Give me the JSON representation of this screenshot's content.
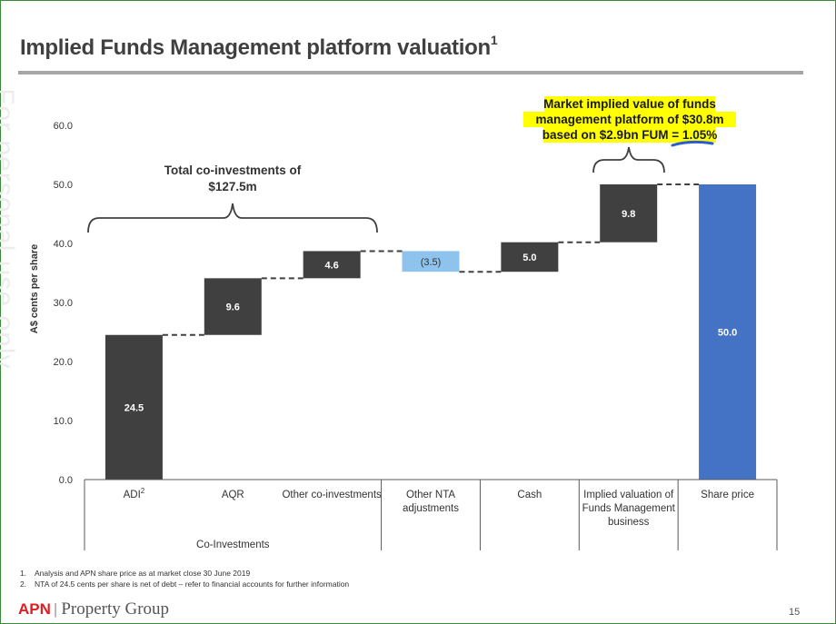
{
  "title": "Implied Funds Management platform valuation",
  "title_sup": "1",
  "watermark": "For personal use only",
  "footnotes": [
    {
      "num": "1.",
      "text": "Analysis and APN share price as at market close 30 June 2019"
    },
    {
      "num": "2.",
      "text": "NTA of 24.5 cents per share is net of debt – refer to financial accounts for further information"
    }
  ],
  "brand": {
    "apn": "APN",
    "separator": "|",
    "name": "Property Group"
  },
  "page_number": "15",
  "chart_data": {
    "type": "waterfall",
    "ylabel": "A$ cents per share",
    "ylim": [
      0,
      60
    ],
    "yticks": [
      "0.0",
      "10.0",
      "20.0",
      "30.0",
      "40.0",
      "50.0",
      "60.0"
    ],
    "categories": [
      {
        "label": [
          "ADI"
        ],
        "sup": "2"
      },
      {
        "label": [
          "AQR"
        ]
      },
      {
        "label": [
          "Other co-investments"
        ]
      },
      {
        "label": [
          "Other NTA",
          "adjustments"
        ]
      },
      {
        "label": [
          "Cash"
        ]
      },
      {
        "label": [
          "Implied valuation of",
          "Funds Management",
          "business"
        ]
      },
      {
        "label": [
          "Share price"
        ]
      }
    ],
    "group_label": "Co-Investments",
    "bars": [
      {
        "start": 0,
        "end": 24.5,
        "label": "24.5",
        "color": "#404040"
      },
      {
        "start": 24.5,
        "end": 34.1,
        "label": "9.6",
        "color": "#404040"
      },
      {
        "start": 34.1,
        "end": 38.7,
        "label": "4.6",
        "color": "#404040"
      },
      {
        "start": 38.7,
        "end": 35.2,
        "label": "(3.5)",
        "color": "#8dc3ec"
      },
      {
        "start": 35.2,
        "end": 40.2,
        "label": "5.0",
        "color": "#404040"
      },
      {
        "start": 40.2,
        "end": 50.0,
        "label": "9.8",
        "color": "#404040"
      },
      {
        "start": 0,
        "end": 50.0,
        "label": "50.0",
        "color": "#4472c4"
      }
    ],
    "annotations": {
      "co_investments": [
        "Total co-investments of",
        "$127.5m"
      ],
      "market_implied": [
        "Market implied value of funds",
        "management platform of $30.8m",
        "based on $2.9bn FUM = 1.05%"
      ]
    },
    "highlight_color": "#ffff00",
    "underline_color": "#2a5bd7"
  }
}
